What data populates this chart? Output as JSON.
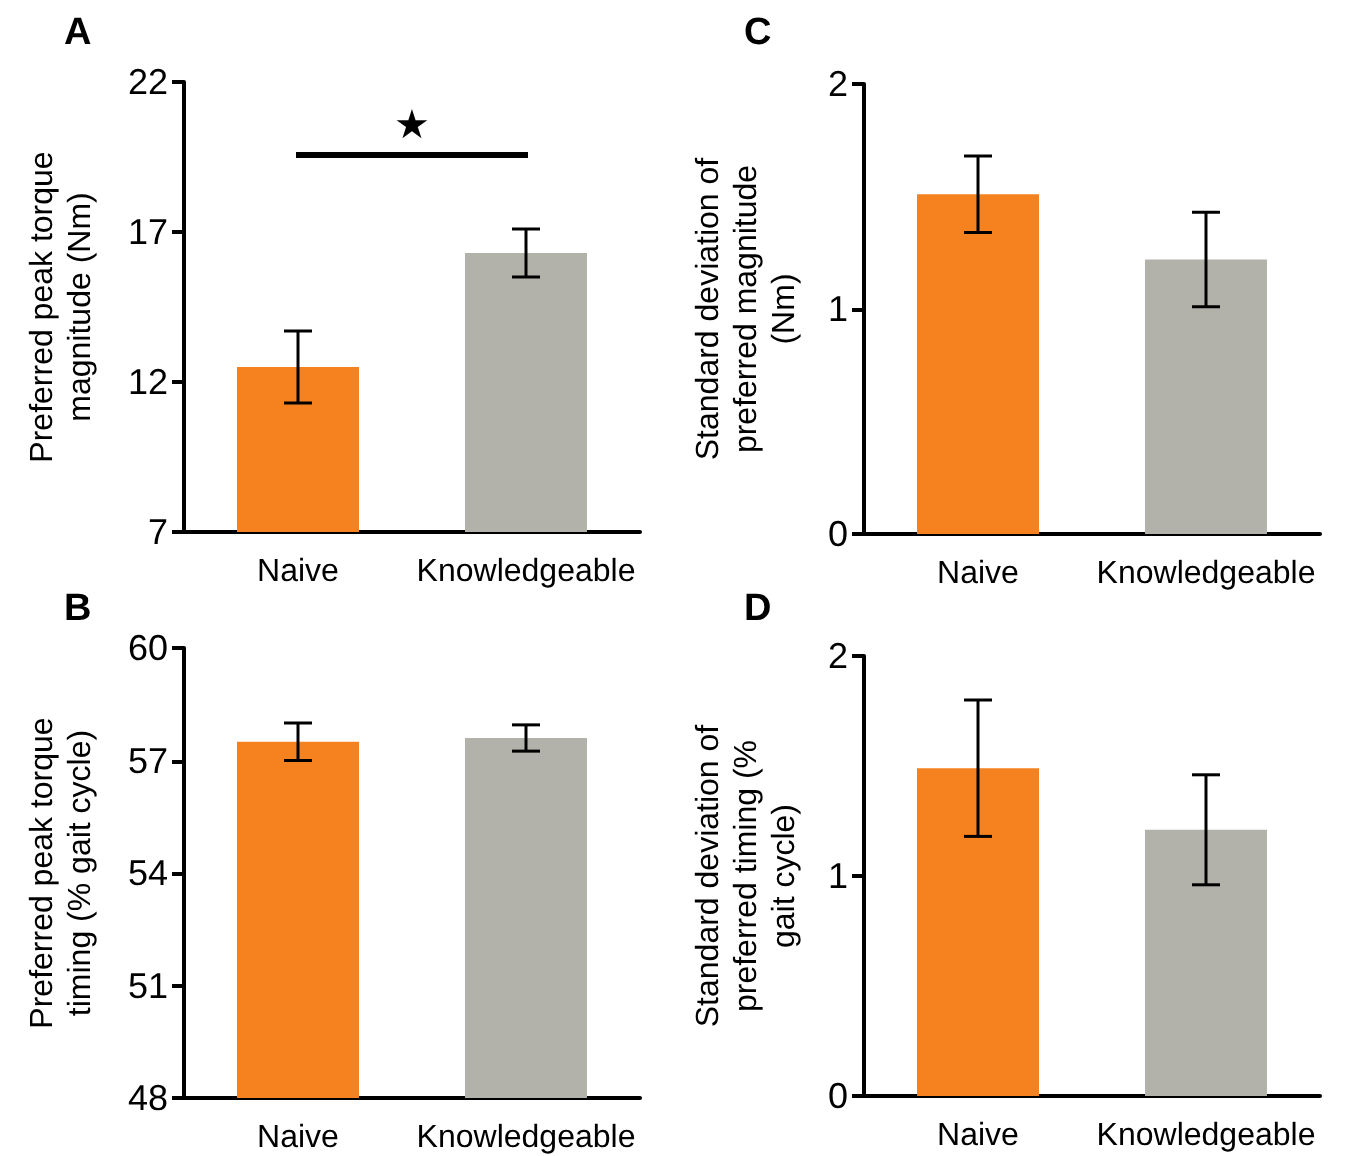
{
  "chart_data": [
    {
      "type": "bar",
      "title": "A",
      "ylabel": "Preferred peak torque magnitude (Nm)",
      "categories": [
        "Naive",
        "Knowledgeable"
      ],
      "values": [
        12.5,
        16.3
      ],
      "errors": [
        1.2,
        0.8
      ],
      "colors": [
        "#f5821f",
        "#b2b2aa"
      ],
      "ylim": [
        7,
        22
      ],
      "yticks": [
        7,
        12,
        17,
        22
      ],
      "grid": false,
      "annotations": [
        "★"
      ]
    },
    {
      "type": "bar",
      "title": "C",
      "ylabel": "Standard deviation of preferred magnitude (Nm)",
      "categories": [
        "Naive",
        "Knowledgeable"
      ],
      "values": [
        1.51,
        1.22
      ],
      "errors": [
        0.17,
        0.21
      ],
      "colors": [
        "#f5821f",
        "#b2b2aa"
      ],
      "ylim": [
        0,
        2
      ],
      "yticks": [
        0,
        1,
        2
      ],
      "grid": false
    },
    {
      "type": "bar",
      "title": "B",
      "ylabel": "Preferred peak torque timing (% gait cycle)",
      "categories": [
        "Naive",
        "Knowledgeable"
      ],
      "values": [
        57.5,
        57.6
      ],
      "errors": [
        0.5,
        0.35
      ],
      "colors": [
        "#f5821f",
        "#b2b2aa"
      ],
      "ylim": [
        48,
        60
      ],
      "yticks": [
        48,
        51,
        54,
        57,
        60
      ],
      "grid": false
    },
    {
      "type": "bar",
      "title": "D",
      "ylabel": "Standard deviation of preferred timing (% gait cycle)",
      "categories": [
        "Naive",
        "Knowledgeable"
      ],
      "values": [
        1.49,
        1.21
      ],
      "errors": [
        0.31,
        0.25
      ],
      "colors": [
        "#f5821f",
        "#b2b2aa"
      ],
      "ylim": [
        0,
        2
      ],
      "yticks": [
        0,
        1,
        2
      ],
      "grid": false
    }
  ]
}
